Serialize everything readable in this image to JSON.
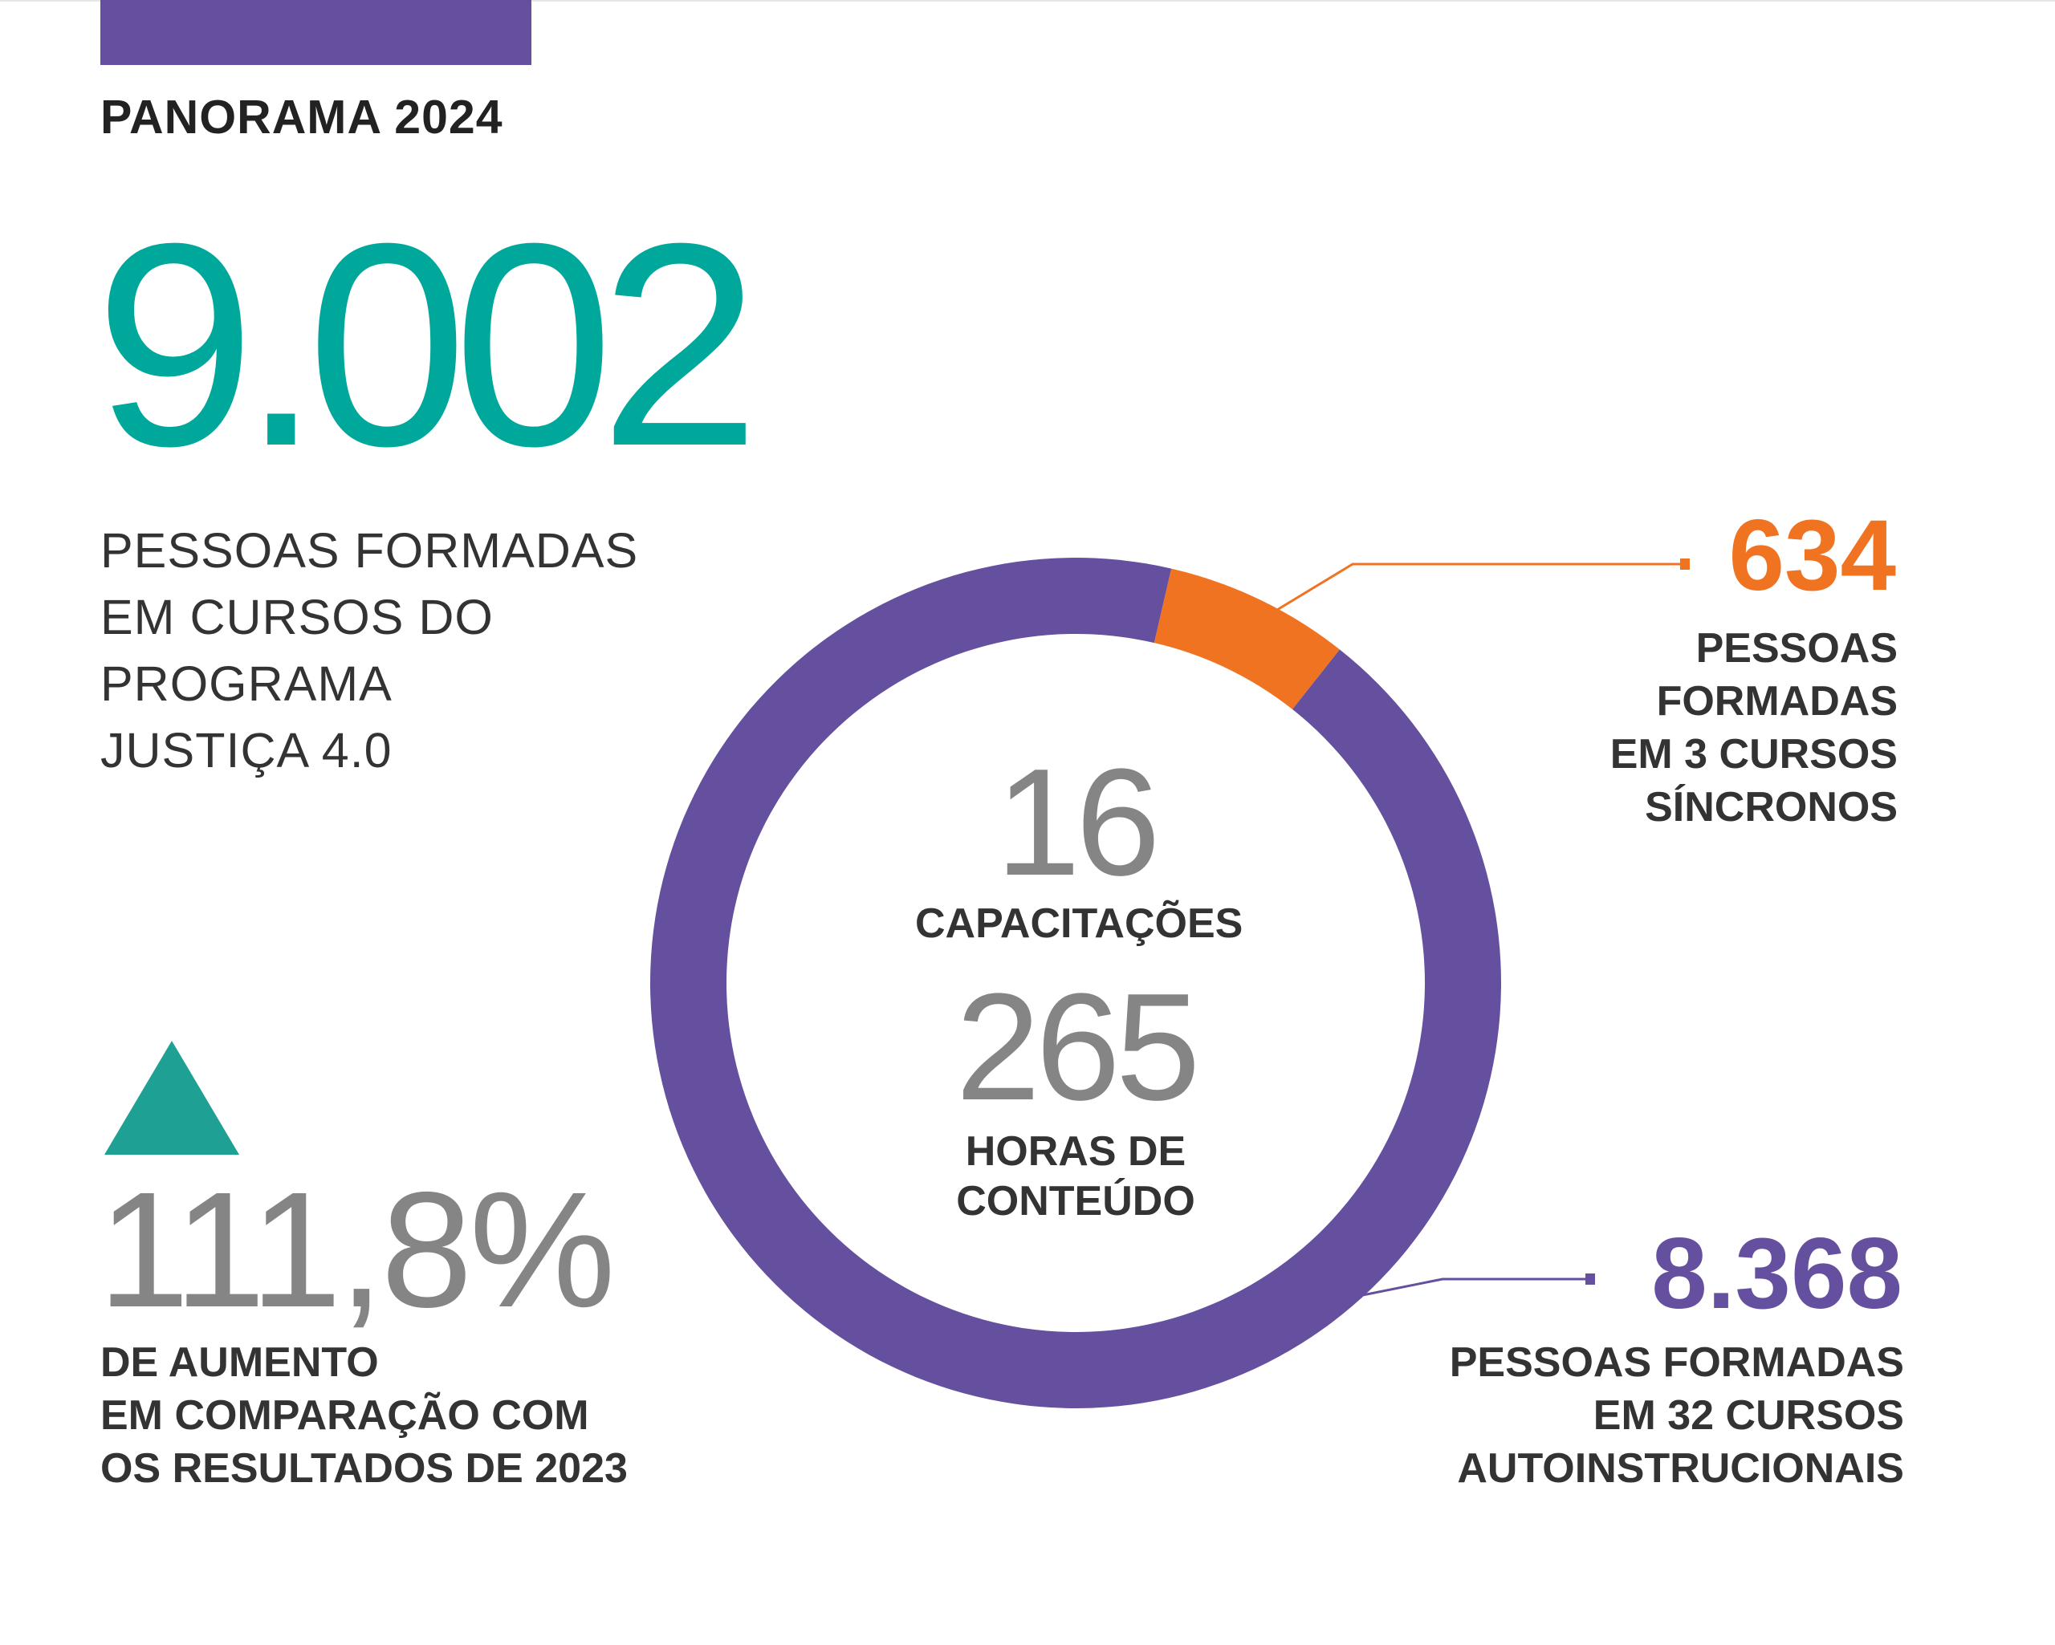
{
  "header": {
    "title": "PANORAMA 2024"
  },
  "total": {
    "value": "9.002",
    "caption": [
      "PESSOAS FORMADAS",
      "EM CURSOS DO",
      "PROGRAMA",
      "JUSTIÇA 4.0"
    ]
  },
  "increase": {
    "value": "111,8%",
    "caption": [
      "DE AUMENTO",
      "EM COMPARAÇÃO COM",
      "OS RESULTADOS DE 2023"
    ]
  },
  "center": {
    "capacitacoes_value": "16",
    "capacitacoes_label": "CAPACITAÇÕES",
    "horas_value": "265",
    "horas_label": [
      "HORAS DE",
      "CONTEÚDO"
    ]
  },
  "colors": {
    "teal": "#00a89c",
    "purple": "#654f9f",
    "orange": "#f07322",
    "gray": "#858585"
  },
  "chart_data": {
    "type": "pie",
    "categories": [
      "PESSOAS FORMADAS EM 3 CURSOS SÍNCRONOS",
      "PESSOAS FORMADAS EM 32 CURSOS AUTOINSTRUCIONAIS"
    ],
    "values": [
      634,
      8368
    ],
    "total": 9002,
    "colors": [
      "#f07322",
      "#654f9f"
    ],
    "labels": {
      "sincronos": {
        "value": "634",
        "caption": [
          "PESSOAS",
          "FORMADAS",
          "EM 3 CURSOS",
          "SÍNCRONOS"
        ]
      },
      "autoinstrucionais": {
        "value": "8.368",
        "caption": [
          "PESSOAS FORMADAS",
          "EM 32 CURSOS",
          "AUTOINSTRUCIONAIS"
        ]
      }
    }
  }
}
